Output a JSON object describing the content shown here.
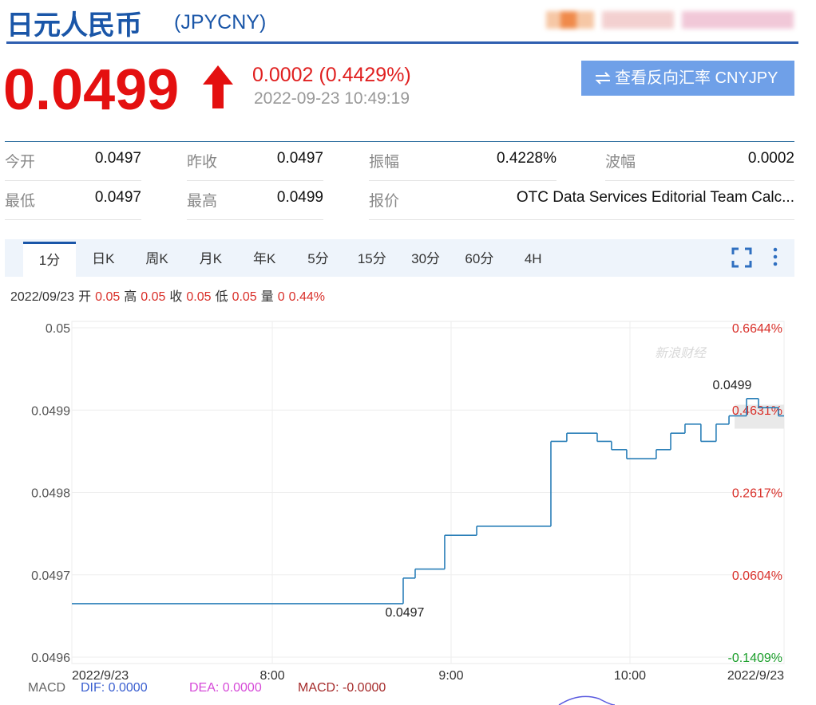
{
  "header": {
    "title": "日元人民币",
    "code": "(JPYCNY)"
  },
  "quote": {
    "price": "0.0499",
    "change": "0.0002 (0.4429%)",
    "time": "2022-09-23 10:49:19",
    "reverse_button": "查看反向汇率 CNYJPY"
  },
  "stats": [
    [
      {
        "label": "今开",
        "value": "0.0497"
      },
      {
        "label": "昨收",
        "value": "0.0497"
      },
      {
        "label": "振幅",
        "value": "0.4228%"
      },
      {
        "label": "波幅",
        "value": "0.0002"
      }
    ],
    [
      {
        "label": "最低",
        "value": "0.0497"
      },
      {
        "label": "最高",
        "value": "0.0499"
      },
      {
        "label": "报价",
        "value": "OTC Data Services Editorial Team Calc..."
      }
    ]
  ],
  "tabs": [
    "1分",
    "日K",
    "周K",
    "月K",
    "年K",
    "5分",
    "15分",
    "30分",
    "60分",
    "4H"
  ],
  "active_tab": 0,
  "info": {
    "date": "2022/09/23",
    "items": [
      {
        "label": "开",
        "value": "0.05"
      },
      {
        "label": "高",
        "value": "0.05"
      },
      {
        "label": "收",
        "value": "0.05"
      },
      {
        "label": "低",
        "value": "0.05"
      },
      {
        "label": "量",
        "value": "0"
      }
    ],
    "change": "0.44%"
  },
  "chart_data": {
    "type": "line",
    "step": true,
    "watermark": "新浪财经",
    "x": [
      6.879,
      8.732,
      8.799,
      8.964,
      9.143,
      9.558,
      9.647,
      9.817,
      9.897,
      9.982,
      10.147,
      10.228,
      10.308,
      10.397,
      10.482,
      10.554,
      10.652,
      10.719,
      10.83,
      10.862
    ],
    "series": [
      {
        "name": "JPYCNY",
        "color": "#2a7fb8",
        "values": [
          0.049665,
          0.049696,
          0.049707,
          0.049748,
          0.049759,
          0.049862,
          0.049872,
          0.049862,
          0.049852,
          0.049841,
          0.049852,
          0.049872,
          0.049883,
          0.049862,
          0.049883,
          0.049893,
          0.049914,
          0.049903,
          0.049893,
          0.049893
        ]
      }
    ],
    "annotations": [
      {
        "text": "0.0499",
        "at": "max"
      },
      {
        "text": "0.0497",
        "at": "min"
      }
    ],
    "xlim": [
      6.879,
      10.862
    ],
    "xticks": [
      {
        "value": 6.879,
        "label": "2022/9/23"
      },
      {
        "value": 8,
        "label": "8:00"
      },
      {
        "value": 9,
        "label": "9:00"
      },
      {
        "value": 10,
        "label": "10:00"
      },
      {
        "value": 10.862,
        "label": "2022/9/23"
      }
    ],
    "ylim": [
      0.0496,
      0.05
    ],
    "yticks": [
      0.0496,
      0.0497,
      0.0498,
      0.0499,
      0.05
    ],
    "y2lim": [
      -0.1409,
      0.6644
    ],
    "y2ticks": [
      {
        "value": -0.1409,
        "label": "-0.1409%"
      },
      {
        "value": 0.0604,
        "label": "0.0604%"
      },
      {
        "value": 0.2617,
        "label": "0.2617%"
      },
      {
        "value": 0.4631,
        "label": "0.4631%"
      },
      {
        "value": 0.6644,
        "label": "0.6644%"
      }
    ],
    "y2_colors": {
      "positive": "#d9302a",
      "negative": "#1a9e2a"
    },
    "grid": true,
    "indicator": {
      "name": "MACD",
      "items": [
        {
          "label": "DIF: 0.0000",
          "color": "#3a5fd0"
        },
        {
          "label": "DEA: 0.0000",
          "color": "#d64ad8"
        },
        {
          "label": "MACD: -0.0000",
          "color": "#a52a2a"
        }
      ]
    }
  }
}
